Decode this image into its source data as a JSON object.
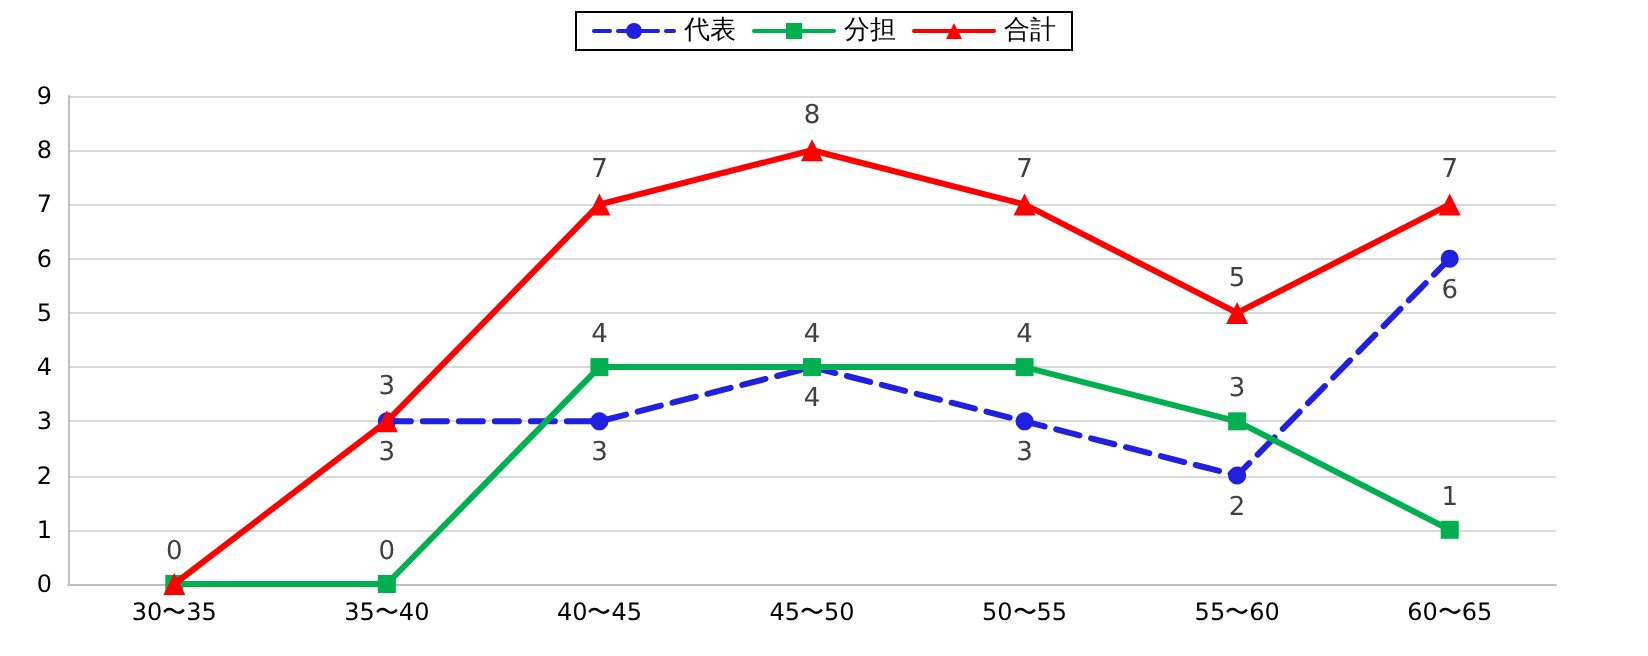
{
  "chart_data": {
    "type": "line",
    "categories": [
      "30〜35",
      "35〜40",
      "40〜45",
      "45〜50",
      "50〜55",
      "55〜60",
      "60〜65"
    ],
    "series": [
      {
        "name": "代表",
        "color": "#2020e0",
        "marker": "circle",
        "line_style": "dashed",
        "values": [
          null,
          3,
          3,
          4,
          3,
          2,
          6
        ],
        "value_labels": [
          null,
          "3",
          "3",
          "4",
          "3",
          "2",
          "6"
        ]
      },
      {
        "name": "分担",
        "color": "#00b050",
        "marker": "square",
        "line_style": "solid",
        "values": [
          0,
          0,
          4,
          4,
          4,
          3,
          1
        ],
        "value_labels": [
          "0",
          "0",
          "4",
          "4",
          "4",
          "3",
          "1"
        ]
      },
      {
        "name": "合計",
        "color": "#ff0000",
        "marker": "triangle",
        "line_style": "solid",
        "values": [
          0,
          3,
          7,
          8,
          7,
          5,
          7
        ],
        "value_labels": [
          null,
          "3",
          "7",
          "8",
          "7",
          "5",
          "7"
        ]
      }
    ],
    "ylim": [
      0,
      9
    ],
    "yticks": [
      0,
      1,
      2,
      3,
      4,
      5,
      6,
      7,
      8,
      9
    ],
    "grid": "y",
    "legend": "top"
  }
}
